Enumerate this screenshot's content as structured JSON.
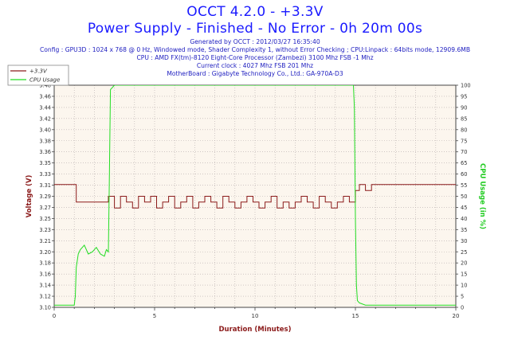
{
  "header": {
    "title": "OCCT 4.2.0 - +3.3V",
    "subtitle": "Power Supply - Finished - No Error - 0h 20m 00s",
    "generated": "Generated by OCCT : 2012/03/27 16:35:40",
    "config": "Config : GPU3D : 1024 x 768 @ 0 Hz, Windowed mode, Shader Complexity 1, without Error Checking ; CPU:Linpack : 64bits mode, 12909.6MB",
    "cpu": "CPU : AMD FX(tm)-8120 Eight-Core Processor (Zambezi) 3100 Mhz FSB -1 Mhz",
    "clock": "Current clock : 4027 Mhz FSB 201 Mhz",
    "motherboard": "MotherBoard : Gigabyte Technology Co., Ltd.: GA-970A-D3"
  },
  "colors": {
    "title": "#1a1aff",
    "info": "#2020c0",
    "axis_label": "#8b1a1a",
    "cpu_axis_label": "#22cc22",
    "voltage_series": "#8b1a1a",
    "cpu_series": "#22dd22",
    "plot_bg": "#fcf6ee",
    "grid": "#b4aaaa"
  },
  "chart_data": {
    "type": "line",
    "xlabel": "Duration (Minutes)",
    "ylabel": "Voltage (V)",
    "y2label": "CPU Usage (in %)",
    "xlim": [
      0,
      20
    ],
    "ylim": [
      3.1,
      3.48
    ],
    "y2lim": [
      0,
      100
    ],
    "x_ticks": [
      0,
      5,
      10,
      15,
      20
    ],
    "y_ticks": [
      "3.10",
      "3.12",
      "3.14",
      "3.16",
      "3.18",
      "3.20",
      "3.21",
      "3.23",
      "3.25",
      "3.27",
      "3.29",
      "3.31",
      "3.33",
      "3.35",
      "3.36",
      "3.38",
      "3.40",
      "3.42",
      "3.44",
      "3.46",
      "3.48"
    ],
    "y2_ticks": [
      0,
      5,
      10,
      15,
      20,
      25,
      30,
      35,
      40,
      45,
      50,
      55,
      60,
      65,
      70,
      75,
      80,
      85,
      90,
      95,
      100
    ],
    "grid": true,
    "legend": "top-left",
    "series": [
      {
        "name": "+3.3V",
        "axis": "left",
        "x": [
          0,
          1.1,
          1.1,
          2.7,
          2.7,
          3.0,
          3.0,
          3.3,
          3.3,
          3.6,
          3.6,
          3.9,
          3.9,
          4.2,
          4.2,
          4.5,
          4.5,
          4.8,
          4.8,
          5.1,
          5.1,
          5.4,
          5.4,
          5.7,
          5.7,
          6.0,
          6.0,
          6.3,
          6.3,
          6.6,
          6.6,
          6.9,
          6.9,
          7.2,
          7.2,
          7.5,
          7.5,
          7.8,
          7.8,
          8.1,
          8.1,
          8.4,
          8.4,
          8.7,
          8.7,
          9.0,
          9.0,
          9.3,
          9.3,
          9.6,
          9.6,
          9.9,
          9.9,
          10.2,
          10.2,
          10.5,
          10.5,
          10.8,
          10.8,
          11.1,
          11.1,
          11.4,
          11.4,
          11.7,
          11.7,
          12.0,
          12.0,
          12.3,
          12.3,
          12.6,
          12.6,
          12.9,
          12.9,
          13.2,
          13.2,
          13.5,
          13.5,
          13.8,
          13.8,
          14.1,
          14.1,
          14.4,
          14.4,
          14.7,
          14.7,
          15.0,
          15.0,
          15.2,
          15.2,
          15.5,
          15.5,
          15.8,
          15.8,
          16.2,
          16.2,
          20
        ],
        "y": [
          3.31,
          3.31,
          3.28,
          3.28,
          3.29,
          3.29,
          3.27,
          3.27,
          3.29,
          3.29,
          3.28,
          3.28,
          3.27,
          3.27,
          3.29,
          3.29,
          3.28,
          3.28,
          3.29,
          3.29,
          3.27,
          3.27,
          3.28,
          3.28,
          3.29,
          3.29,
          3.27,
          3.27,
          3.28,
          3.28,
          3.29,
          3.29,
          3.27,
          3.27,
          3.28,
          3.28,
          3.29,
          3.29,
          3.28,
          3.28,
          3.27,
          3.27,
          3.29,
          3.29,
          3.28,
          3.28,
          3.27,
          3.27,
          3.28,
          3.28,
          3.29,
          3.29,
          3.28,
          3.28,
          3.27,
          3.27,
          3.28,
          3.28,
          3.29,
          3.29,
          3.27,
          3.27,
          3.28,
          3.28,
          3.27,
          3.27,
          3.28,
          3.28,
          3.29,
          3.29,
          3.28,
          3.28,
          3.27,
          3.27,
          3.29,
          3.29,
          3.28,
          3.28,
          3.27,
          3.27,
          3.28,
          3.28,
          3.29,
          3.29,
          3.28,
          3.28,
          3.3,
          3.3,
          3.31,
          3.31,
          3.3,
          3.3,
          3.31,
          3.31,
          3.31,
          3.31
        ]
      },
      {
        "name": "CPU Usage",
        "axis": "right",
        "x": [
          0,
          0.5,
          1.0,
          1.05,
          1.1,
          1.2,
          1.3,
          1.5,
          1.7,
          1.9,
          2.1,
          2.3,
          2.5,
          2.6,
          2.7,
          2.75,
          2.8,
          3.0,
          3.5,
          4.0,
          5.0,
          6.0,
          7.0,
          8.0,
          9.0,
          10.0,
          11.0,
          12.0,
          13.0,
          14.0,
          14.9,
          14.95,
          15.0,
          15.05,
          15.1,
          15.2,
          15.5,
          16.0,
          17.0,
          18.0,
          19.0,
          20.0
        ],
        "y": [
          1,
          1,
          1,
          5,
          18,
          24,
          26,
          28,
          24,
          25,
          27,
          24,
          23,
          26,
          25,
          60,
          98,
          100,
          100,
          100,
          100,
          100,
          100,
          100,
          100,
          100,
          100,
          100,
          100,
          100,
          100,
          90,
          40,
          10,
          3,
          2,
          1,
          1,
          1,
          1,
          1,
          1
        ]
      }
    ]
  }
}
